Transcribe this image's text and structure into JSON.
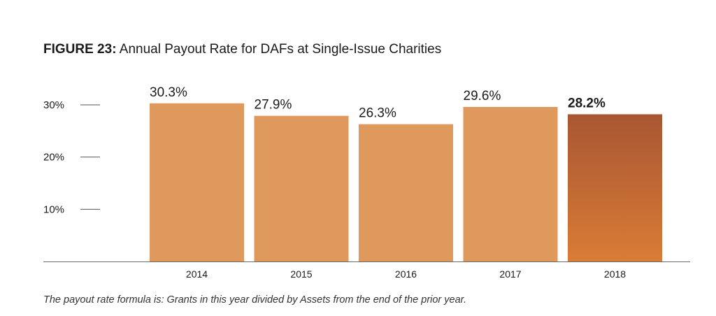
{
  "figure_label": "FIGURE 23:",
  "chart_data": {
    "type": "bar",
    "title": "Annual Payout Rate for DAFs at Single-Issue Charities",
    "categories": [
      "2014",
      "2015",
      "2016",
      "2017",
      "2018"
    ],
    "values": [
      30.3,
      27.9,
      26.3,
      29.6,
      28.2
    ],
    "value_labels": [
      "30.3%",
      "27.9%",
      "26.3%",
      "29.6%",
      "28.2%"
    ],
    "highlight_index": 4,
    "y_ticks": [
      10,
      20,
      30
    ],
    "y_tick_labels": [
      "10%",
      "20%",
      "30%"
    ],
    "ylim": [
      0,
      30
    ],
    "xlabel": "",
    "ylabel": "",
    "grid": false,
    "colors": {
      "bar": "#e0995c",
      "highlight_top": "#a95633",
      "highlight_bottom": "#d97c35",
      "axis": "#6b6b6b",
      "tick": "#555555"
    }
  },
  "footnote": "The payout rate formula is: Grants in this year divided by Assets from the end of the prior year."
}
